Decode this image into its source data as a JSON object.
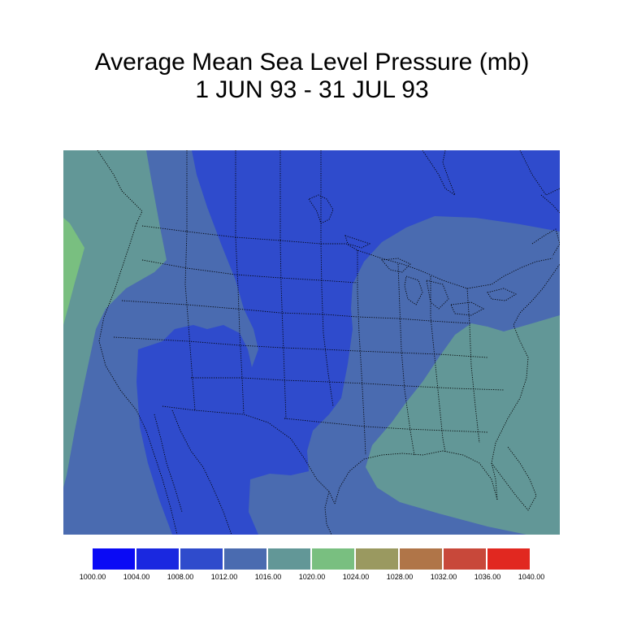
{
  "title": {
    "line1": "Average Mean Sea Level Pressure (mb)",
    "line2": "1 JUN 93 - 31 JUL 93"
  },
  "map": {
    "region": "North America / Contiguous United States",
    "field": "mean sea level pressure",
    "band_colors": {
      "1008-1012": "#2f4bcc",
      "1012-1016": "#4a6bb0",
      "1016-1020": "#629797",
      "1020-1024": "#79bf80"
    },
    "boundary_style": "dotted black"
  },
  "legend": {
    "colors": [
      "#0a0af5",
      "#1a28e0",
      "#2f4bcc",
      "#4a6bb0",
      "#629797",
      "#79bf80",
      "#9a9960",
      "#b07548",
      "#c8483a",
      "#e12820"
    ],
    "labels": [
      "1000.00",
      "1004.00",
      "1008.00",
      "1012.00",
      "1016.00",
      "1020.00",
      "1024.00",
      "1028.00",
      "1032.00",
      "1036.00",
      "1040.00"
    ]
  }
}
